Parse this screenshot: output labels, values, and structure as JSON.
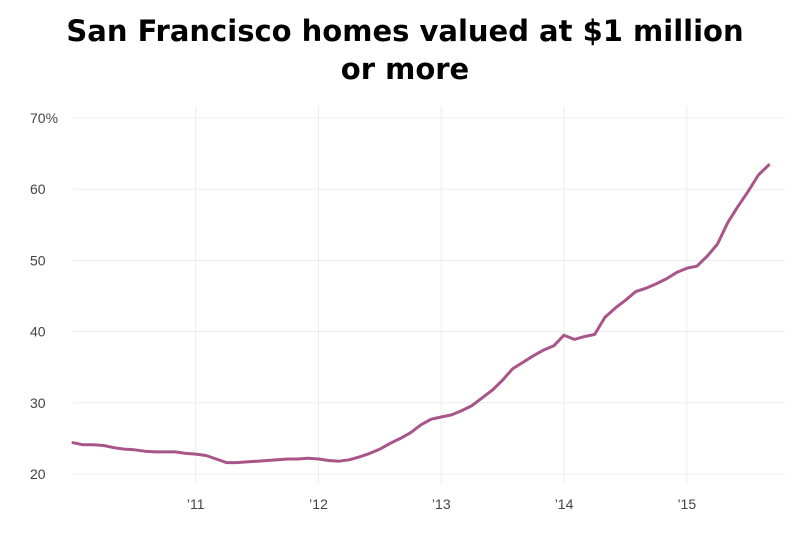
{
  "chart_data": {
    "type": "line",
    "title_lines": [
      "San Francisco homes valued at $1 million",
      "or more"
    ],
    "title": "San Francisco homes valued at $1 million or more",
    "xlabel": "",
    "ylabel": "",
    "ylim": [
      20,
      70
    ],
    "xlim": [
      2010.0,
      2015.8
    ],
    "y_ticks": [
      {
        "value": 70,
        "label": "70%"
      },
      {
        "value": 60,
        "label": "60"
      },
      {
        "value": 50,
        "label": "50"
      },
      {
        "value": 40,
        "label": "40"
      },
      {
        "value": 30,
        "label": "30"
      },
      {
        "value": 20,
        "label": "20"
      }
    ],
    "x_ticks": [
      {
        "value": 2011,
        "label": "’11"
      },
      {
        "value": 2012,
        "label": "’12"
      },
      {
        "value": 2013,
        "label": "’13"
      },
      {
        "value": 2014,
        "label": "’14"
      },
      {
        "value": 2015,
        "label": "’15"
      }
    ],
    "grid": true,
    "line_color": "#a8558a",
    "series": [
      {
        "x": [
          2010.0,
          2010.083,
          2010.167,
          2010.25,
          2010.333,
          2010.417,
          2010.5,
          2010.583,
          2010.667,
          2010.75,
          2010.833,
          2010.917,
          2011.0,
          2011.083,
          2011.167,
          2011.25,
          2011.333,
          2011.417,
          2011.5,
          2011.583,
          2011.667,
          2011.75,
          2011.833,
          2011.917,
          2012.0,
          2012.083,
          2012.167,
          2012.25,
          2012.333,
          2012.417,
          2012.5,
          2012.583,
          2012.667,
          2012.75,
          2012.833,
          2012.917,
          2013.0,
          2013.083,
          2013.167,
          2013.25,
          2013.333,
          2013.417,
          2013.5,
          2013.583,
          2013.667,
          2013.75,
          2013.833,
          2013.917,
          2014.0,
          2014.083,
          2014.167,
          2014.25,
          2014.333,
          2014.417,
          2014.5,
          2014.583,
          2014.667,
          2014.75,
          2014.833,
          2014.917,
          2015.0,
          2015.083,
          2015.167,
          2015.25,
          2015.333,
          2015.417,
          2015.5,
          2015.583,
          2015.667
        ],
        "values": [
          24.4,
          24.1,
          24.1,
          24.0,
          23.7,
          23.5,
          23.4,
          23.2,
          23.1,
          23.1,
          23.1,
          22.9,
          22.8,
          22.6,
          22.1,
          21.6,
          21.6,
          21.7,
          21.8,
          21.9,
          22.0,
          22.1,
          22.1,
          22.2,
          22.1,
          21.9,
          21.8,
          22.0,
          22.4,
          22.9,
          23.5,
          24.3,
          25.0,
          25.8,
          26.9,
          27.7,
          28.0,
          28.3,
          28.9,
          29.6,
          30.7,
          31.8,
          33.2,
          34.8,
          35.7,
          36.6,
          37.4,
          38.0,
          39.5,
          38.9,
          39.3,
          39.6,
          42.0,
          43.3,
          44.4,
          45.6,
          46.1,
          46.7,
          47.4,
          48.3,
          48.9,
          49.2,
          50.6,
          52.3,
          55.3,
          57.6,
          59.7,
          62.0,
          63.4
        ]
      }
    ]
  }
}
